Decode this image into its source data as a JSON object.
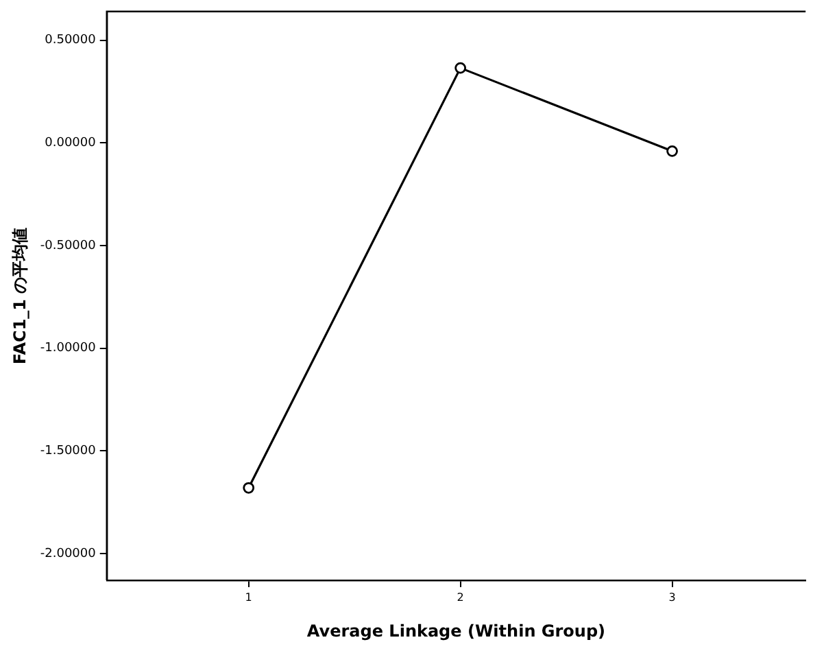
{
  "chart_data": {
    "type": "line",
    "xlabel": "Average Linkage (Within Group)",
    "ylabel": "FAC1_1 の平均値",
    "x": [
      1,
      2,
      3
    ],
    "series": [
      {
        "color": "#000000",
        "values": [
          -1.68,
          0.365,
          -0.04
        ]
      }
    ],
    "xlim": [
      0.33,
      3.63
    ],
    "xticks": [
      {
        "value": 1,
        "label": "1"
      },
      {
        "value": 2,
        "label": "2"
      },
      {
        "value": 3,
        "label": "3"
      }
    ],
    "ylim": [
      -2.13,
      0.64
    ],
    "yticks": [
      {
        "value": 0.5,
        "label": "0.50000"
      },
      {
        "value": 0,
        "label": "0.00000"
      },
      {
        "value": -0.5,
        "label": "-0.50000"
      },
      {
        "value": -1,
        "label": "-1.00000"
      },
      {
        "value": -1.5,
        "label": "-1.50000"
      },
      {
        "value": -2,
        "label": "-2.00000"
      }
    ],
    "grid": false,
    "legend": false,
    "marker": "circle",
    "line_style": "solid"
  }
}
